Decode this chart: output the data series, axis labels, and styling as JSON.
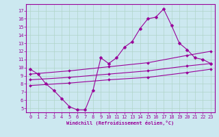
{
  "xlabel": "Windchill (Refroidissement éolien,°C)",
  "bg_color": "#cce8f0",
  "grid_color": "#b0d4c8",
  "line_color": "#990099",
  "spine_color": "#990099",
  "x_ticks": [
    0,
    1,
    2,
    3,
    4,
    5,
    6,
    7,
    8,
    9,
    10,
    11,
    12,
    13,
    14,
    15,
    16,
    17,
    18,
    19,
    20,
    21,
    22,
    23
  ],
  "y_ticks": [
    5,
    6,
    7,
    8,
    9,
    10,
    11,
    12,
    13,
    14,
    15,
    16,
    17
  ],
  "ylim": [
    4.5,
    17.8
  ],
  "xlim": [
    -0.5,
    23.5
  ],
  "series_main": {
    "x": [
      0,
      1,
      2,
      3,
      4,
      5,
      6,
      7,
      8,
      9,
      10,
      11,
      12,
      13,
      14,
      15,
      16,
      17,
      18,
      19,
      20,
      21,
      22,
      23
    ],
    "y": [
      9.8,
      9.2,
      8.0,
      7.2,
      6.2,
      5.2,
      4.8,
      4.8,
      7.2,
      11.2,
      10.5,
      11.2,
      12.5,
      13.2,
      14.8,
      16.0,
      16.2,
      17.2,
      15.2,
      13.0,
      12.2,
      11.2,
      11.0,
      10.5
    ]
  },
  "series_line1": {
    "x": [
      0,
      5,
      10,
      15,
      20,
      23
    ],
    "y": [
      9.2,
      9.6,
      10.1,
      10.6,
      11.5,
      12.0
    ]
  },
  "series_line2": {
    "x": [
      0,
      5,
      10,
      15,
      20,
      23
    ],
    "y": [
      8.5,
      8.8,
      9.2,
      9.6,
      10.2,
      10.5
    ]
  },
  "series_line3": {
    "x": [
      0,
      5,
      10,
      15,
      20,
      23
    ],
    "y": [
      7.8,
      8.1,
      8.5,
      8.8,
      9.4,
      9.8
    ]
  },
  "tick_fontsize": 5,
  "xlabel_fontsize": 5,
  "marker_size": 2.5,
  "linewidth": 0.8
}
